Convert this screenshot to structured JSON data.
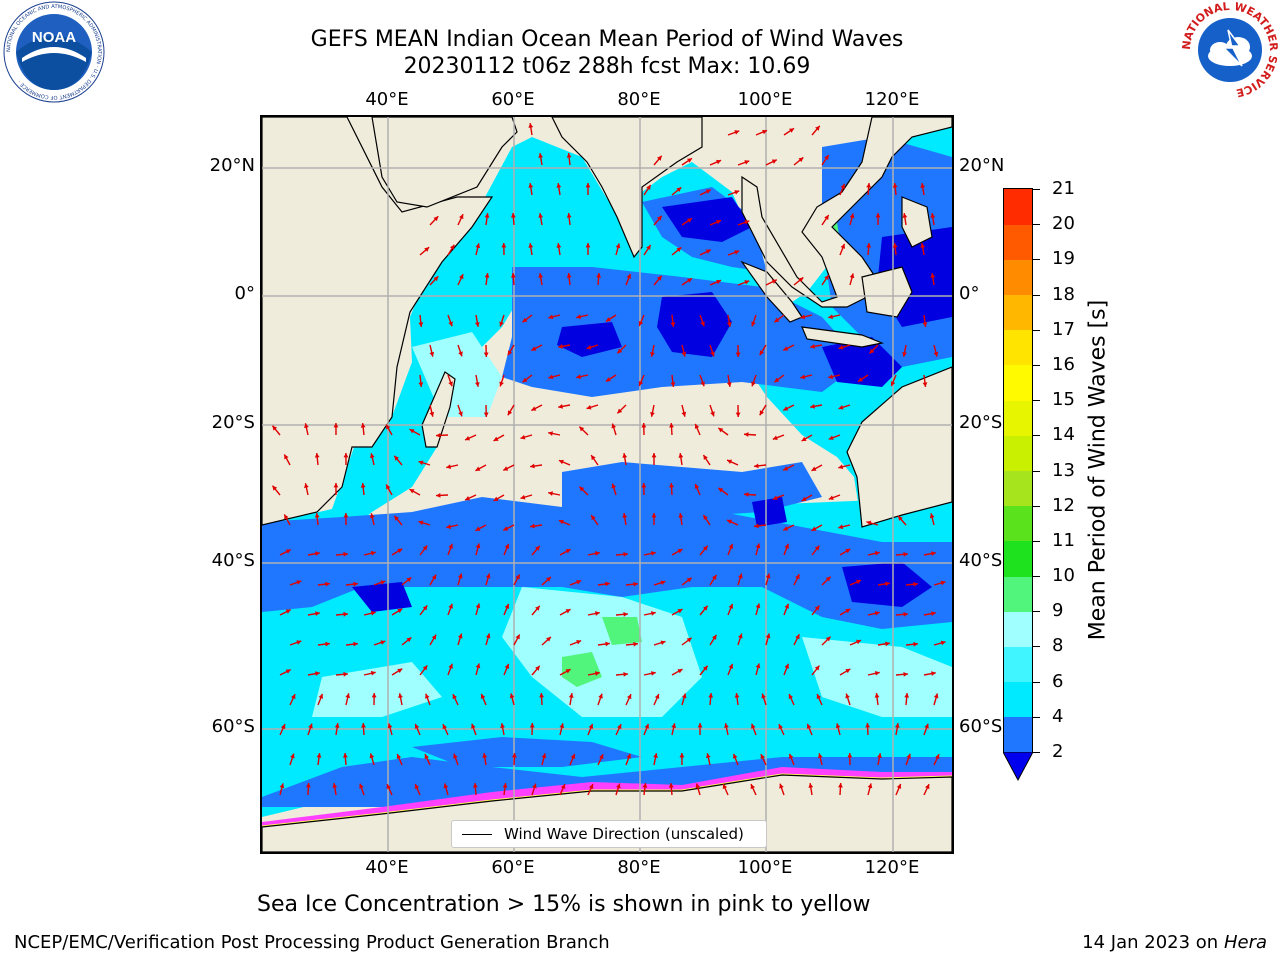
{
  "title_line1": "GEFS MEAN Indian Ocean Mean Period of Wind Waves",
  "title_line2": "20230112 t06z 288h fcst   Max: 10.69",
  "lon_ticks": [
    "40°E",
    "60°E",
    "80°E",
    "100°E",
    "120°E"
  ],
  "lat_ticks_left": [
    "20°N",
    "0°",
    "20°S",
    "40°S",
    "60°S"
  ],
  "lat_ticks_right": [
    "20°N",
    "0°",
    "20°S",
    "40°S",
    "60°S"
  ],
  "legend_label": "Wind Wave Direction (unscaled)",
  "colorbar": {
    "label": "Mean Period of Wind Waves [s]",
    "ticks": [
      "2",
      "4",
      "6",
      "8",
      "9",
      "10",
      "11",
      "12",
      "13",
      "14",
      "15",
      "16",
      "17",
      "18",
      "19",
      "20",
      "21"
    ],
    "colors": [
      "#1f77ff",
      "#00eaff",
      "#40f5ff",
      "#a0ffff",
      "#52f57c",
      "#1de21d",
      "#5ae31d",
      "#a6e51d",
      "#c8f000",
      "#e8f500",
      "#fffa00",
      "#ffe400",
      "#ffb700",
      "#ff8c00",
      "#ff5a00",
      "#ff2c00"
    ],
    "under_color": "#0000ee"
  },
  "map_colors": {
    "land": "#efecdc",
    "dark_blue": "#0000e0",
    "blue": "#1f77ff",
    "cyan": "#00eaff",
    "light_cyan": "#a0ffff",
    "green": "#52f57c",
    "ice_pink": "#ff40ff",
    "ice_yellow": "#ffff50",
    "arrow": "#e00000",
    "grid": "#b0b0b0"
  },
  "ice_note": "Sea Ice Concentration > 15% is shown in pink to yellow",
  "footer_left": "NCEP/EMC/Verification Post Processing Product Generation Branch",
  "footer_right_text": "14 Jan 2023 on",
  "footer_right_machine": "Hera",
  "logos": {
    "noaa_text": "NOAA",
    "noaa_ring": "NATIONAL OCEANIC AND ATMOSPHERIC ADMINISTRATION · U.S. DEPARTMENT OF COMMERCE ·",
    "nws_ring": "NATIONAL WEATHER SERVICE"
  }
}
